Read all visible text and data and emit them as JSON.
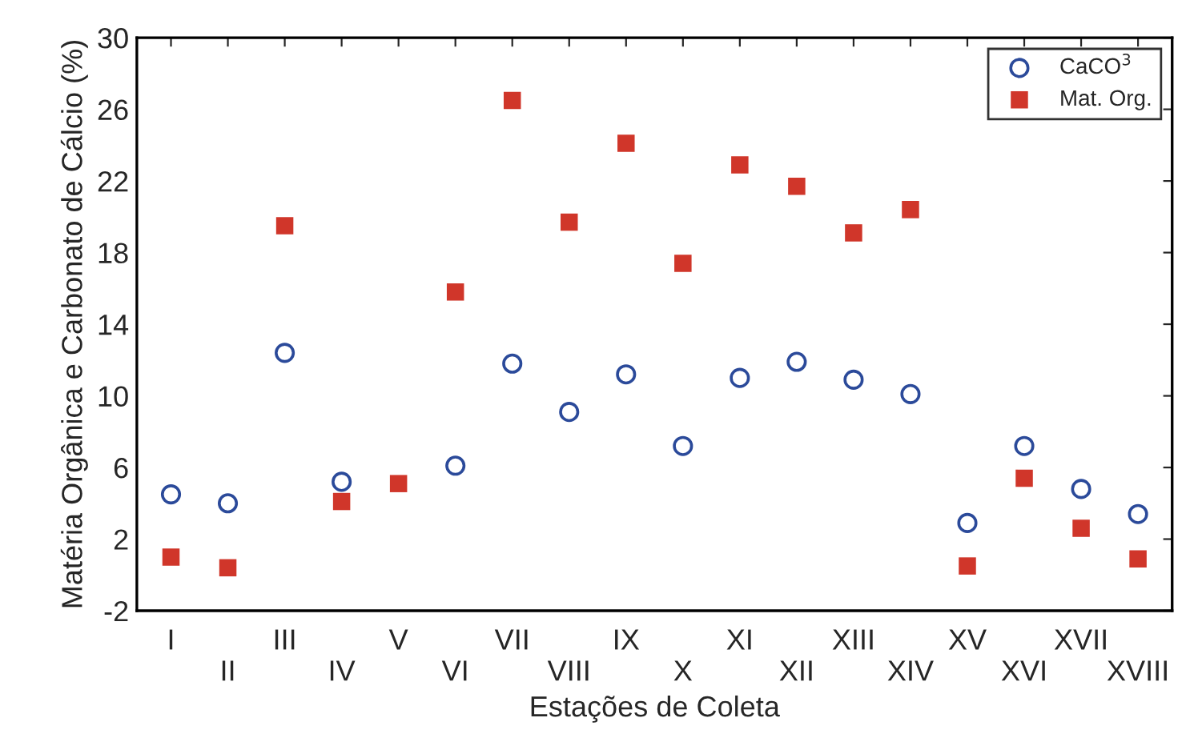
{
  "chart_data": {
    "type": "scatter",
    "xlabel": "Estações de Coleta",
    "ylabel": "Matéria Orgânica e Carbonato de Cálcio (%)",
    "categories": [
      "I",
      "II",
      "III",
      "IV",
      "V",
      "VI",
      "VII",
      "VIII",
      "IX",
      "X",
      "XI",
      "XII",
      "XIII",
      "XIV",
      "XV",
      "XVI",
      "XVII",
      "XVIII"
    ],
    "series": [
      {
        "name": "CaCO$^{3}$",
        "color": "#2b4a9a",
        "marker": "circle",
        "values": [
          4.5,
          4.0,
          12.4,
          5.2,
          null,
          6.1,
          11.8,
          9.1,
          11.2,
          7.2,
          11.0,
          11.9,
          10.9,
          10.1,
          2.9,
          7.2,
          4.8,
          3.4
        ]
      },
      {
        "name": "Mat. Org.",
        "color": "#d0362a",
        "marker": "square",
        "values": [
          1.0,
          0.4,
          19.5,
          4.1,
          5.1,
          15.8,
          26.5,
          19.7,
          24.1,
          17.4,
          22.9,
          21.7,
          19.1,
          20.4,
          0.5,
          5.4,
          2.6,
          0.9
        ]
      }
    ],
    "ylim": [
      -2,
      30
    ],
    "yticks": [
      -2,
      2,
      6,
      10,
      14,
      18,
      22,
      26,
      30
    ],
    "grid": false,
    "legend": "top right"
  }
}
